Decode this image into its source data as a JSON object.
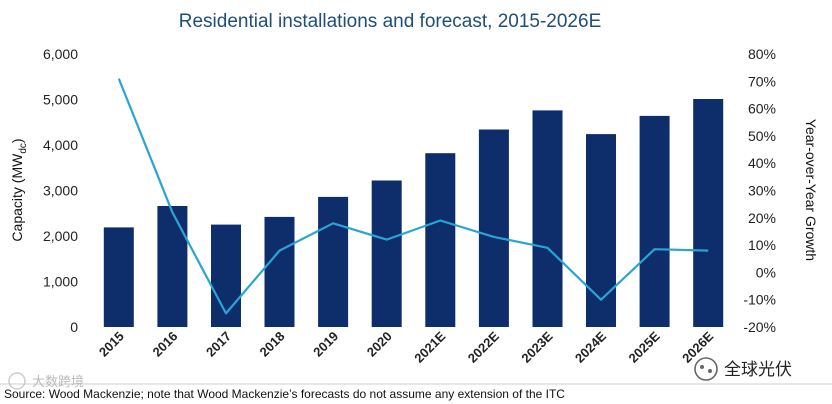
{
  "chart_data": {
    "type": "bar+line",
    "title": "Residential installations and forecast, 2015-2026E",
    "ylabel": "Capacity (MW",
    "ylabel_sub": "dc",
    "ylabel_close": ")",
    "y2label": "Year-over-Year Growth",
    "categories": [
      "2015",
      "2016",
      "2017",
      "2018",
      "2019",
      "2020",
      "2021E",
      "2022E",
      "2023E",
      "2024E",
      "2025E",
      "2026E"
    ],
    "series": [
      {
        "name": "Capacity (MWdc)",
        "type": "bar",
        "axis": "left",
        "values": [
          2190,
          2660,
          2250,
          2420,
          2860,
          3220,
          3820,
          4340,
          4760,
          4240,
          4640,
          5010
        ]
      },
      {
        "name": "Year-over-Year Growth",
        "type": "line",
        "axis": "right",
        "values": [
          71,
          22,
          -15,
          8,
          18,
          12,
          19,
          13,
          9,
          -10,
          8.5,
          8
        ]
      }
    ],
    "ylim": [
      0,
      6000
    ],
    "y2lim": [
      -20,
      80
    ],
    "yticks": [
      "0",
      "1,000",
      "2,000",
      "3,000",
      "4,000",
      "5,000",
      "6,000"
    ],
    "y2ticks": [
      "-20%",
      "-10%",
      "0%",
      "10%",
      "20%",
      "30%",
      "40%",
      "50%",
      "60%",
      "70%",
      "80%"
    ],
    "colors": {
      "bar": "#0d2d6b",
      "line": "#2aa4d5",
      "title": "#1f4e79"
    }
  },
  "source": "Source: Wood Mackenzie; note that Wood Mackenzie’s forecasts do not assume any extension of the ITC",
  "watermark_right": "全球光伏",
  "watermark_left": "大数跨境"
}
